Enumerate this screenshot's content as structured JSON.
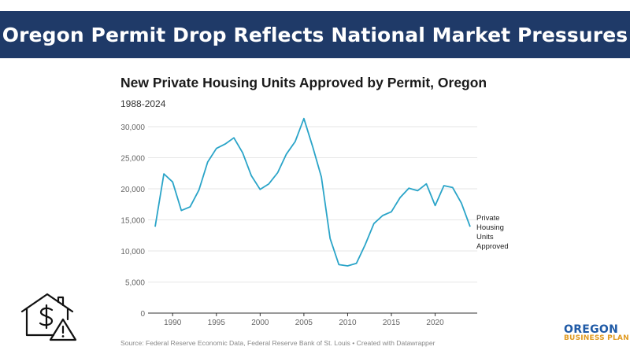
{
  "banner": {
    "title": "Oregon Permit Drop Reflects National Market Pressures"
  },
  "chart_data": {
    "type": "line",
    "title": "New Private Housing Units Approved by Permit, Oregon",
    "subtitle": "1988-2024",
    "xlabel": "",
    "ylabel": "",
    "xlim": [
      1988,
      2024
    ],
    "ylim": [
      0,
      30000
    ],
    "xticks": [
      1990,
      1995,
      2000,
      2005,
      2010,
      2015,
      2020
    ],
    "xtick_labels": [
      "1990",
      "1995",
      "2000",
      "2005",
      "2010",
      "2015",
      "2020"
    ],
    "yticks": [
      0,
      5000,
      10000,
      15000,
      20000,
      25000,
      30000
    ],
    "ytick_labels": [
      "0",
      "5,000",
      "10,000",
      "15,000",
      "20,000",
      "25,000",
      "30,000"
    ],
    "grid": true,
    "series": [
      {
        "name": "Private Housing Units Approved",
        "label_lines": [
          "Private",
          "Housing",
          "Units",
          "Approved"
        ],
        "color": "#2aa4c8",
        "x": [
          1988,
          1989,
          1990,
          1991,
          1992,
          1993,
          1994,
          1995,
          1996,
          1997,
          1998,
          1999,
          2000,
          2001,
          2002,
          2003,
          2004,
          2005,
          2006,
          2007,
          2008,
          2009,
          2010,
          2011,
          2012,
          2013,
          2014,
          2015,
          2016,
          2017,
          2018,
          2019,
          2020,
          2021,
          2022,
          2023,
          2024
        ],
        "values": [
          13900,
          22400,
          21100,
          16500,
          17100,
          19800,
          24300,
          26500,
          27200,
          28200,
          25800,
          22100,
          19900,
          20800,
          22600,
          25600,
          27600,
          31300,
          26800,
          21900,
          12000,
          7800,
          7600,
          8000,
          11000,
          14400,
          15700,
          16300,
          18600,
          20100,
          19700,
          20800,
          17300,
          20500,
          20200,
          17700,
          13900
        ]
      }
    ]
  },
  "source": "Source: Federal Reserve Economic Data, Federal Reserve Bank of St. Louis • Created with Datawrapper",
  "logo": {
    "line1": "OREGON",
    "line2": "BUSINESS PLAN"
  },
  "colors": {
    "banner": "#1f3a68",
    "line": "#2aa4c8",
    "logo_blue": "#1f5aa6",
    "logo_orange": "#e09a1f"
  }
}
